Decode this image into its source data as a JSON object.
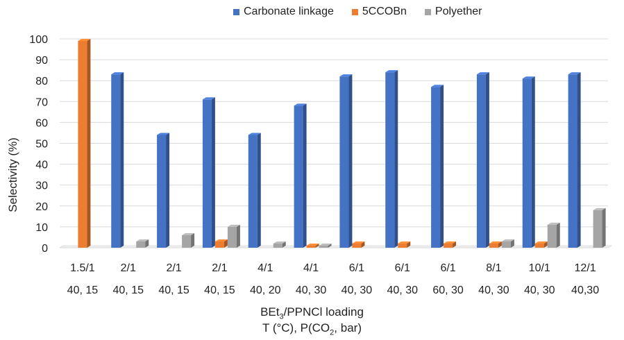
{
  "chart_data": {
    "type": "bar",
    "ylabel": "Selectivity (%)",
    "xlabel_line1_pre": "BEt",
    "xlabel_line1_sub": "3",
    "xlabel_line1_post": "/PPNCl loading",
    "xlabel_line2_pre": "T (°C), P(CO",
    "xlabel_line2_sub": "2",
    "xlabel_line2_post": ", bar)",
    "ylim": [
      0,
      100
    ],
    "yticks": [
      0,
      10,
      20,
      30,
      40,
      50,
      60,
      70,
      80,
      90,
      100
    ],
    "legend_position": "top",
    "grid": true,
    "categories_loading": [
      "1.5/1",
      "2/1",
      "2/1",
      "2/1",
      "4/1",
      "4/1",
      "6/1",
      "6/1",
      "6/1",
      "8/1",
      "10/1",
      "12/1"
    ],
    "categories_conditions": [
      "40, 15",
      "40, 15",
      "40, 15",
      "40, 15",
      "40, 20",
      "40, 30",
      "40, 30",
      "40, 30",
      "60, 30",
      "40, 30",
      "40, 30",
      "40,30"
    ],
    "series": [
      {
        "name": "Carbonate linkage",
        "color": "#4472C4",
        "values": [
          0,
          83,
          54,
          71,
          54,
          68,
          82,
          84,
          77,
          83,
          81,
          83
        ]
      },
      {
        "name": "5CCOBn",
        "color": "#ED7D31",
        "values": [
          99,
          0,
          0,
          3,
          0,
          1,
          2,
          2,
          2,
          2,
          2,
          0
        ]
      },
      {
        "name": "Polyether",
        "color": "#A5A5A5",
        "values": [
          0,
          3,
          6,
          10,
          2,
          1,
          0,
          0,
          0,
          3,
          11,
          18
        ]
      }
    ]
  }
}
